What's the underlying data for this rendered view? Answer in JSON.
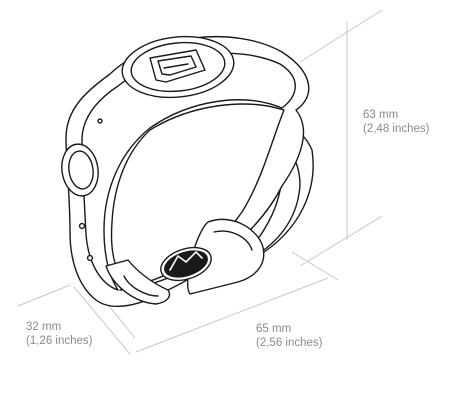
{
  "dimensions": {
    "height": {
      "metric": "63 mm",
      "imperial": "(2,48 inches)"
    },
    "depth": {
      "metric": "32 mm",
      "imperial": "(1,26 inches)"
    },
    "width": {
      "metric": "65 mm",
      "imperial": "(2,56 inches)"
    }
  },
  "colors": {
    "outline": "#1a1a1a",
    "dimension_lines": "#c8c8c8",
    "dimension_text": "#8a8a8a",
    "background": "#ffffff"
  }
}
